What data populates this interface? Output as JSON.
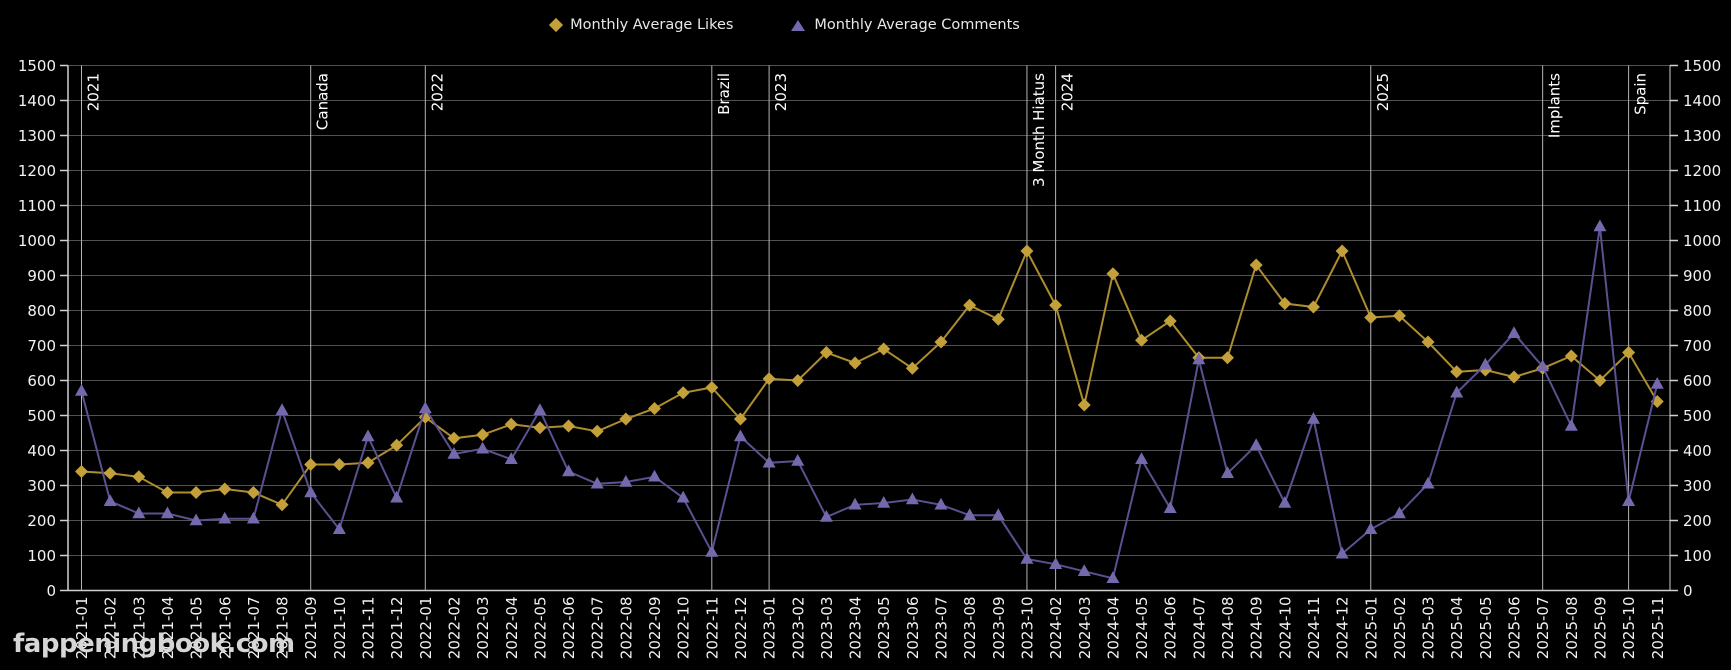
{
  "legend": {
    "items": [
      {
        "label": "Monthly Average Likes",
        "marker": "diamond",
        "color": "#c4a03a"
      },
      {
        "label": "Monthly Average Comments",
        "marker": "triangle",
        "color": "#7568ac"
      }
    ]
  },
  "watermark": "fappeningbook.com",
  "colors": {
    "background": "#000000",
    "grid": "#525252",
    "axis": "#d0d0d0",
    "annotation_line": "#b5b5b5",
    "text": "#f2f2f2"
  },
  "chart_data": {
    "type": "line",
    "title": "",
    "xlabel": "",
    "ylabel": "",
    "ylim": [
      0,
      1500
    ],
    "y_tick_step": 100,
    "y_axis_sides": "both",
    "grid": true,
    "legend_position": "top",
    "x": [
      "2021-01",
      "2021-02",
      "2021-03",
      "2021-04",
      "2021-05",
      "2021-06",
      "2021-07",
      "2021-08",
      "2021-09",
      "2021-10",
      "2021-11",
      "2021-12",
      "2022-01",
      "2022-02",
      "2022-03",
      "2022-04",
      "2022-05",
      "2022-06",
      "2022-07",
      "2022-08",
      "2022-09",
      "2022-10",
      "2022-11",
      "2022-12",
      "2023-01",
      "2023-02",
      "2023-03",
      "2023-04",
      "2023-05",
      "2023-06",
      "2023-07",
      "2023-08",
      "2023-09",
      "2023-10",
      "2024-02",
      "2024-03",
      "2024-04",
      "2024-05",
      "2024-06",
      "2024-07",
      "2024-08",
      "2024-09",
      "2024-10",
      "2024-11",
      "2024-12",
      "2025-01",
      "2025-02",
      "2025-03",
      "2025-04",
      "2025-05",
      "2025-06",
      "2025-07",
      "2025-08",
      "2025-09",
      "2025-10",
      "2025-11"
    ],
    "series": [
      {
        "name": "Monthly Average Likes",
        "marker": "diamond",
        "color": "#c4a03a",
        "line_color": "#ac8d2f",
        "values": [
          340,
          335,
          325,
          280,
          280,
          290,
          280,
          245,
          360,
          360,
          365,
          415,
          495,
          435,
          445,
          475,
          465,
          470,
          455,
          490,
          520,
          565,
          580,
          490,
          605,
          600,
          680,
          650,
          690,
          635,
          710,
          815,
          775,
          970,
          815,
          530,
          905,
          715,
          770,
          665,
          665,
          930,
          820,
          810,
          970,
          780,
          785,
          710,
          625,
          630,
          610,
          635,
          670,
          600,
          680,
          540
        ]
      },
      {
        "name": "Monthly Average Comments",
        "marker": "triangle",
        "color": "#7568ac",
        "line_color": "#5a5190",
        "values": [
          570,
          255,
          220,
          220,
          200,
          205,
          205,
          515,
          280,
          175,
          440,
          265,
          520,
          390,
          405,
          375,
          515,
          340,
          305,
          310,
          325,
          265,
          110,
          440,
          365,
          370,
          210,
          245,
          250,
          260,
          245,
          215,
          215,
          90,
          75,
          55,
          35,
          375,
          235,
          660,
          335,
          415,
          250,
          490,
          105,
          175,
          220,
          305,
          565,
          645,
          735,
          640,
          470,
          1040,
          255,
          590
        ]
      }
    ],
    "annotations": [
      {
        "x": "2021-01",
        "label": "2021"
      },
      {
        "x": "2021-09",
        "label": "Canada"
      },
      {
        "x": "2022-01",
        "label": "2022"
      },
      {
        "x": "2022-11",
        "label": "Brazil"
      },
      {
        "x": "2023-01",
        "label": "2023"
      },
      {
        "x": "2023-10",
        "label": "3 Month Hiatus"
      },
      {
        "x": "2024-02",
        "label": "2024"
      },
      {
        "x": "2025-01",
        "label": "2025"
      },
      {
        "x": "2025-07",
        "label": "Implants"
      },
      {
        "x": "2025-10",
        "label": "Spain"
      }
    ]
  }
}
